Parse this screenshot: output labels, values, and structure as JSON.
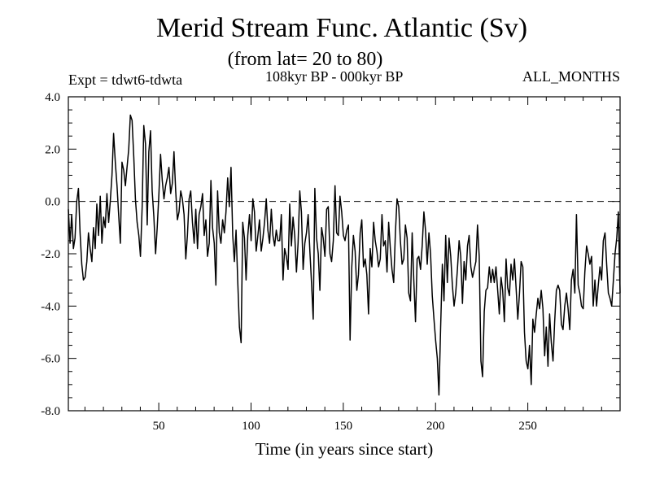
{
  "chart_data": {
    "type": "line",
    "title": "Merid Stream Func. Atlantic (Sv)",
    "subtitle": "(from lat= 20 to 80)",
    "left_annotation": "Expt = tdwt6-tdwta",
    "center_annotation": "108kyr BP - 000kyr BP",
    "right_annotation": "ALL_MONTHS",
    "xlabel": "Time (in years since start)",
    "ylabel": "",
    "xlim": [
      1,
      300
    ],
    "ylim": [
      -8,
      4
    ],
    "xticks": [
      50,
      100,
      150,
      200,
      250
    ],
    "xtick_labels": [
      "50",
      "100",
      "150",
      "200",
      "250"
    ],
    "yticks": [
      -8,
      -6,
      -4,
      -2,
      0,
      2,
      4
    ],
    "ytick_labels": [
      "-8.0",
      "-6.0",
      "-4.0",
      "-2.0",
      "0.0",
      "2.0",
      "4.0"
    ],
    "reference_line": {
      "y": 0.0,
      "style": "dashed"
    },
    "grid": false,
    "series": [
      {
        "name": "Merid Stream Func. Atlantic",
        "color": "#000000",
        "values": [
          -0.3,
          -1.6,
          -0.5,
          -1.8,
          -1.4,
          0.0,
          0.5,
          -1.2,
          -2.4,
          -3.0,
          -2.9,
          -2.3,
          -1.2,
          -1.8,
          -2.3,
          -1.0,
          -1.8,
          -0.1,
          -1.3,
          0.2,
          -1.6,
          -0.6,
          -1.0,
          0.3,
          -0.8,
          0.0,
          1.0,
          2.6,
          1.5,
          0.6,
          -0.5,
          -1.6,
          1.5,
          1.2,
          0.6,
          1.3,
          2.0,
          3.3,
          3.1,
          1.7,
          0.1,
          -0.8,
          -1.3,
          -2.1,
          -0.2,
          2.9,
          2.2,
          -0.9,
          1.9,
          2.7,
          0.4,
          -0.6,
          -2.0,
          -1.0,
          0.3,
          1.8,
          0.8,
          0.1,
          0.6,
          0.9,
          1.3,
          0.3,
          0.7,
          1.9,
          0.4,
          -0.7,
          -0.4,
          0.4,
          0.1,
          -0.5,
          -2.2,
          -1.3,
          0.1,
          0.4,
          -0.8,
          -1.6,
          -0.3,
          -1.8,
          -0.5,
          -0.2,
          0.3,
          -1.3,
          -0.7,
          -2.1,
          -1.6,
          0.8,
          -1.0,
          -1.6,
          -3.2,
          0.4,
          -1.2,
          -1.6,
          -0.7,
          -1.2,
          -0.4,
          0.9,
          -0.2,
          1.3,
          -1.3,
          -2.3,
          -1.1,
          -3.0,
          -4.8,
          -5.4,
          -0.8,
          -1.4,
          -3.0,
          -1.3,
          -0.5,
          -1.5,
          0.1,
          -0.4,
          -1.9,
          -1.3,
          -0.7,
          -1.9,
          -1.4,
          -0.8,
          0.1,
          -1.1,
          -1.6,
          -0.3,
          -1.3,
          -1.7,
          -1.1,
          -1.5,
          -1.5,
          -0.5,
          -3.0,
          -1.8,
          -2.1,
          -2.6,
          -0.1,
          -1.7,
          -0.6,
          -1.3,
          -2.7,
          -1.6,
          0.4,
          -0.4,
          -2.6,
          -1.6,
          -1.2,
          -0.5,
          -1.9,
          -3.1,
          -4.5,
          0.5,
          -1.4,
          -2.0,
          -3.4,
          -1.0,
          -1.4,
          -2.1,
          -0.3,
          -0.2,
          -2.0,
          -2.3,
          -1.5,
          0.6,
          -1.2,
          -1.3,
          0.2,
          -0.4,
          -1.3,
          -1.5,
          -1.1,
          -0.9,
          -5.3,
          -2.5,
          -1.3,
          -1.9,
          -3.4,
          -2.8,
          -1.2,
          -0.7,
          -2.5,
          -2.2,
          -2.8,
          -4.3,
          -1.8,
          -2.5,
          -0.8,
          -1.5,
          -1.9,
          -2.5,
          -2.2,
          -0.5,
          -1.7,
          -1.5,
          -2.7,
          -0.8,
          -1.8,
          -2.6,
          -3.1,
          -1.2,
          0.1,
          -0.2,
          -1.5,
          -2.4,
          -2.2,
          -0.9,
          -1.4,
          -3.5,
          -3.8,
          -1.2,
          -3.0,
          -4.6,
          -2.2,
          -2.1,
          -2.6,
          -1.7,
          -0.4,
          -1.1,
          -2.4,
          -1.2,
          -2.0,
          -3.6,
          -4.5,
          -5.3,
          -6.0,
          -7.4,
          -4.8,
          -2.4,
          -3.8,
          -1.3,
          -3.1,
          -1.4,
          -2.1,
          -3.2,
          -4.0,
          -3.5,
          -2.6,
          -1.5,
          -2.1,
          -3.9,
          -2.3,
          -3.0,
          -1.7,
          -1.3,
          -2.5,
          -2.9,
          -2.6,
          -2.3,
          -0.9,
          -2.1,
          -6.1,
          -6.7,
          -4.2,
          -3.4,
          -3.3,
          -2.5,
          -3.1,
          -2.6,
          -3.1,
          -2.5,
          -3.4,
          -4.3,
          -2.9,
          -3.4,
          -4.6,
          -2.2,
          -3.3,
          -3.6,
          -2.4,
          -3.0,
          -2.2,
          -3.3,
          -4.5,
          -3.5,
          -2.3,
          -2.5,
          -5.0,
          -6.1,
          -6.4,
          -5.5,
          -7.0,
          -4.5,
          -5.0,
          -4.3,
          -3.7,
          -4.1,
          -3.4,
          -4.1,
          -5.9,
          -4.8,
          -6.3,
          -4.3,
          -5.4,
          -6.1,
          -4.6,
          -3.4,
          -3.2,
          -3.4,
          -4.7,
          -4.9,
          -4.0,
          -3.5,
          -4.1,
          -4.9,
          -3.0,
          -2.6,
          -3.5,
          -0.5,
          -3.2,
          -3.5,
          -4.0,
          -4.1,
          -2.7,
          -1.7,
          -2.0,
          -2.4,
          -2.1,
          -4.0,
          -3.0,
          -4.0,
          -3.2,
          -2.5,
          -3.0,
          -1.5,
          -1.2,
          -2.4,
          -3.5,
          -3.7,
          -4.0,
          -3.0,
          -2.0,
          -1.4,
          -0.4,
          -3.5
        ]
      }
    ]
  }
}
